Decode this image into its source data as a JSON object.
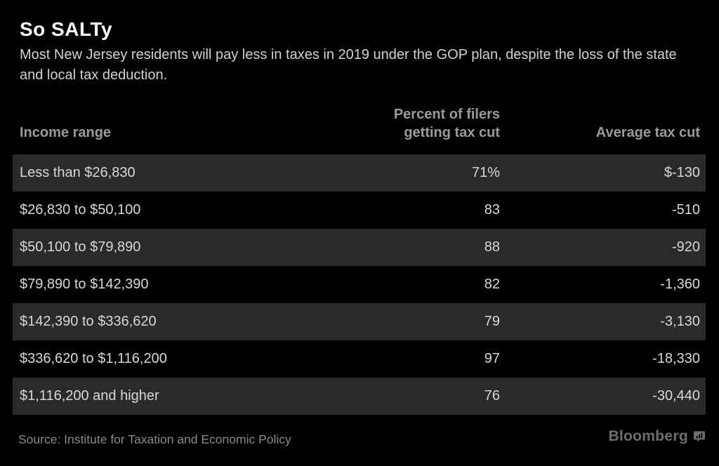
{
  "header": {
    "title": "So SALTy",
    "subtitle": "Most New Jersey residents will pay less in taxes in 2019 under the GOP plan, despite the loss of the state and local tax deduction."
  },
  "footer": {
    "source": "Source: Institute for Taxation and Economic Policy",
    "brand_name": "Bloomberg",
    "brand_icon": "bloomberg-chart-bubble-icon"
  },
  "colors": {
    "background": "#000000",
    "row_stripe": "#2a2a2a",
    "title_text": "#ffffff",
    "body_text": "#d8d8d8",
    "header_text": "#9b9b9b",
    "source_text": "#8a8a8a",
    "brand_text": "#6e6e6e"
  },
  "chart_data": {
    "type": "table",
    "title": "So SALTy",
    "subtitle": "Most New Jersey residents will pay less in taxes in 2019 under the GOP plan, despite the loss of the state and local tax deduction.",
    "columns": [
      {
        "label_lines": [
          "Income range"
        ],
        "align": "left"
      },
      {
        "label_lines": [
          "Percent of filers",
          "getting tax cut"
        ],
        "align": "right"
      },
      {
        "label_lines": [
          "Average tax cut"
        ],
        "align": "right"
      }
    ],
    "rows": [
      [
        "Less than $26,830",
        "71%",
        "$-130"
      ],
      [
        "$26,830 to $50,100",
        "83",
        "-510"
      ],
      [
        "$50,100 to $79,890",
        "88",
        "-920"
      ],
      [
        "$79,890 to $142,390",
        "82",
        "-1,360"
      ],
      [
        "$142,390 to $336,620",
        "79",
        "-3,130"
      ],
      [
        "$336,620 to $1,116,200",
        "97",
        "-18,330"
      ],
      [
        "$1,116,200 and higher",
        "76",
        "-30,440"
      ]
    ],
    "numeric": {
      "percent_getting_tax_cut": [
        71,
        83,
        88,
        82,
        79,
        97,
        76
      ],
      "average_tax_cut_usd": [
        -130,
        -510,
        -920,
        -1360,
        -3130,
        -18330,
        -30440
      ]
    },
    "layout_hints": {
      "striped_rows": "odd rows shaded dark gray on black",
      "value_alignment": "numeric columns right-aligned"
    },
    "source": "Source: Institute for Taxation and Economic Policy"
  }
}
